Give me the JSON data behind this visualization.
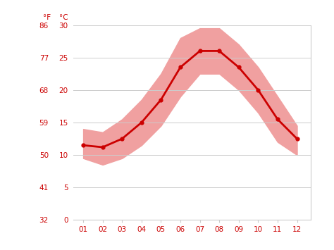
{
  "months": [
    1,
    2,
    3,
    4,
    5,
    6,
    7,
    8,
    9,
    10,
    11,
    12
  ],
  "month_labels": [
    "01",
    "02",
    "03",
    "04",
    "05",
    "06",
    "07",
    "08",
    "09",
    "10",
    "11",
    "12"
  ],
  "mean_temp": [
    11.5,
    11.2,
    12.5,
    15.0,
    18.5,
    23.5,
    26.0,
    26.0,
    23.5,
    20.0,
    15.5,
    12.5
  ],
  "temp_max": [
    14.0,
    13.5,
    15.5,
    18.5,
    22.5,
    28.0,
    29.5,
    29.5,
    27.0,
    23.5,
    19.0,
    14.5
  ],
  "temp_min": [
    9.5,
    8.5,
    9.5,
    11.5,
    14.5,
    19.0,
    22.5,
    22.5,
    20.0,
    16.5,
    12.0,
    10.0
  ],
  "line_color": "#cc0000",
  "band_color": "#f0a0a0",
  "grid_color": "#cccccc",
  "axis_color": "#cc0000",
  "bg_color": "#ffffff",
  "ylim_celsius": [
    0,
    30
  ],
  "yticks_celsius": [
    0,
    5,
    10,
    15,
    20,
    25,
    30
  ],
  "yticks_fahrenheit": [
    32,
    41,
    50,
    59,
    68,
    77,
    86
  ],
  "label_f": "°F",
  "label_c": "°C"
}
